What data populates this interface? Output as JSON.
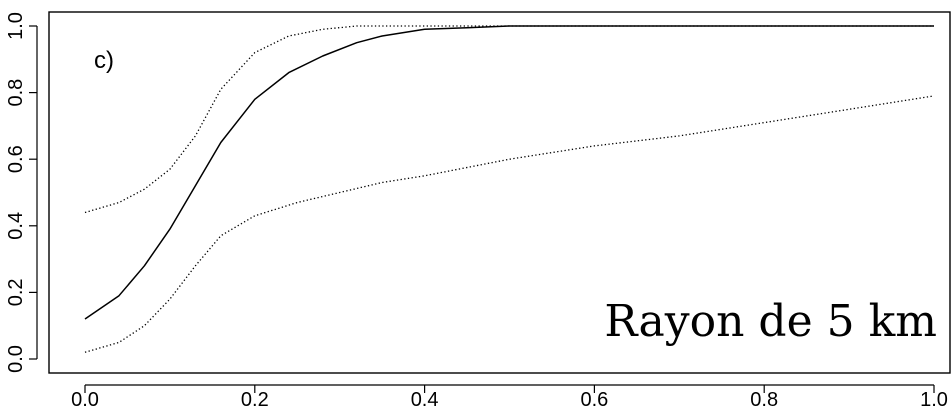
{
  "chart_data": {
    "type": "line",
    "panel_label": "c)",
    "annotation": "Rayon de 5 km",
    "xlim": [
      0.0,
      1.0
    ],
    "ylim": [
      0.0,
      1.0
    ],
    "x_ticks": [
      "0.0",
      "0.2",
      "0.4",
      "0.6",
      "0.8",
      "1.0"
    ],
    "y_ticks": [
      "0.0",
      "0.2",
      "0.4",
      "0.6",
      "0.8",
      "1.0"
    ],
    "grid": false,
    "legend": "none",
    "series": [
      {
        "style": "solid",
        "color": "#000000",
        "x": [
          0.0,
          0.04,
          0.07,
          0.1,
          0.13,
          0.16,
          0.2,
          0.24,
          0.28,
          0.32,
          0.35,
          0.4,
          0.45,
          0.5,
          0.6,
          0.7,
          0.8,
          0.9,
          1.0
        ],
        "y": [
          0.12,
          0.19,
          0.28,
          0.39,
          0.52,
          0.65,
          0.78,
          0.86,
          0.91,
          0.95,
          0.97,
          0.99,
          0.995,
          1.0,
          1.0,
          1.0,
          1.0,
          1.0,
          1.0
        ]
      },
      {
        "style": "dotted",
        "color": "#000000",
        "x": [
          0.0,
          0.04,
          0.07,
          0.1,
          0.13,
          0.16,
          0.2,
          0.24,
          0.28,
          0.32,
          0.36,
          0.4,
          0.5,
          0.6,
          0.7,
          0.8,
          0.9,
          1.0
        ],
        "y": [
          0.44,
          0.47,
          0.51,
          0.57,
          0.67,
          0.81,
          0.92,
          0.97,
          0.99,
          1.0,
          1.0,
          1.0,
          1.0,
          1.0,
          1.0,
          1.0,
          1.0,
          1.0
        ]
      },
      {
        "style": "dotted",
        "color": "#000000",
        "x": [
          0.0,
          0.04,
          0.07,
          0.1,
          0.13,
          0.16,
          0.2,
          0.25,
          0.3,
          0.35,
          0.4,
          0.5,
          0.6,
          0.7,
          0.8,
          0.9,
          1.0
        ],
        "y": [
          0.02,
          0.05,
          0.1,
          0.18,
          0.28,
          0.37,
          0.43,
          0.47,
          0.5,
          0.53,
          0.55,
          0.6,
          0.64,
          0.67,
          0.71,
          0.75,
          0.79
        ]
      }
    ]
  }
}
